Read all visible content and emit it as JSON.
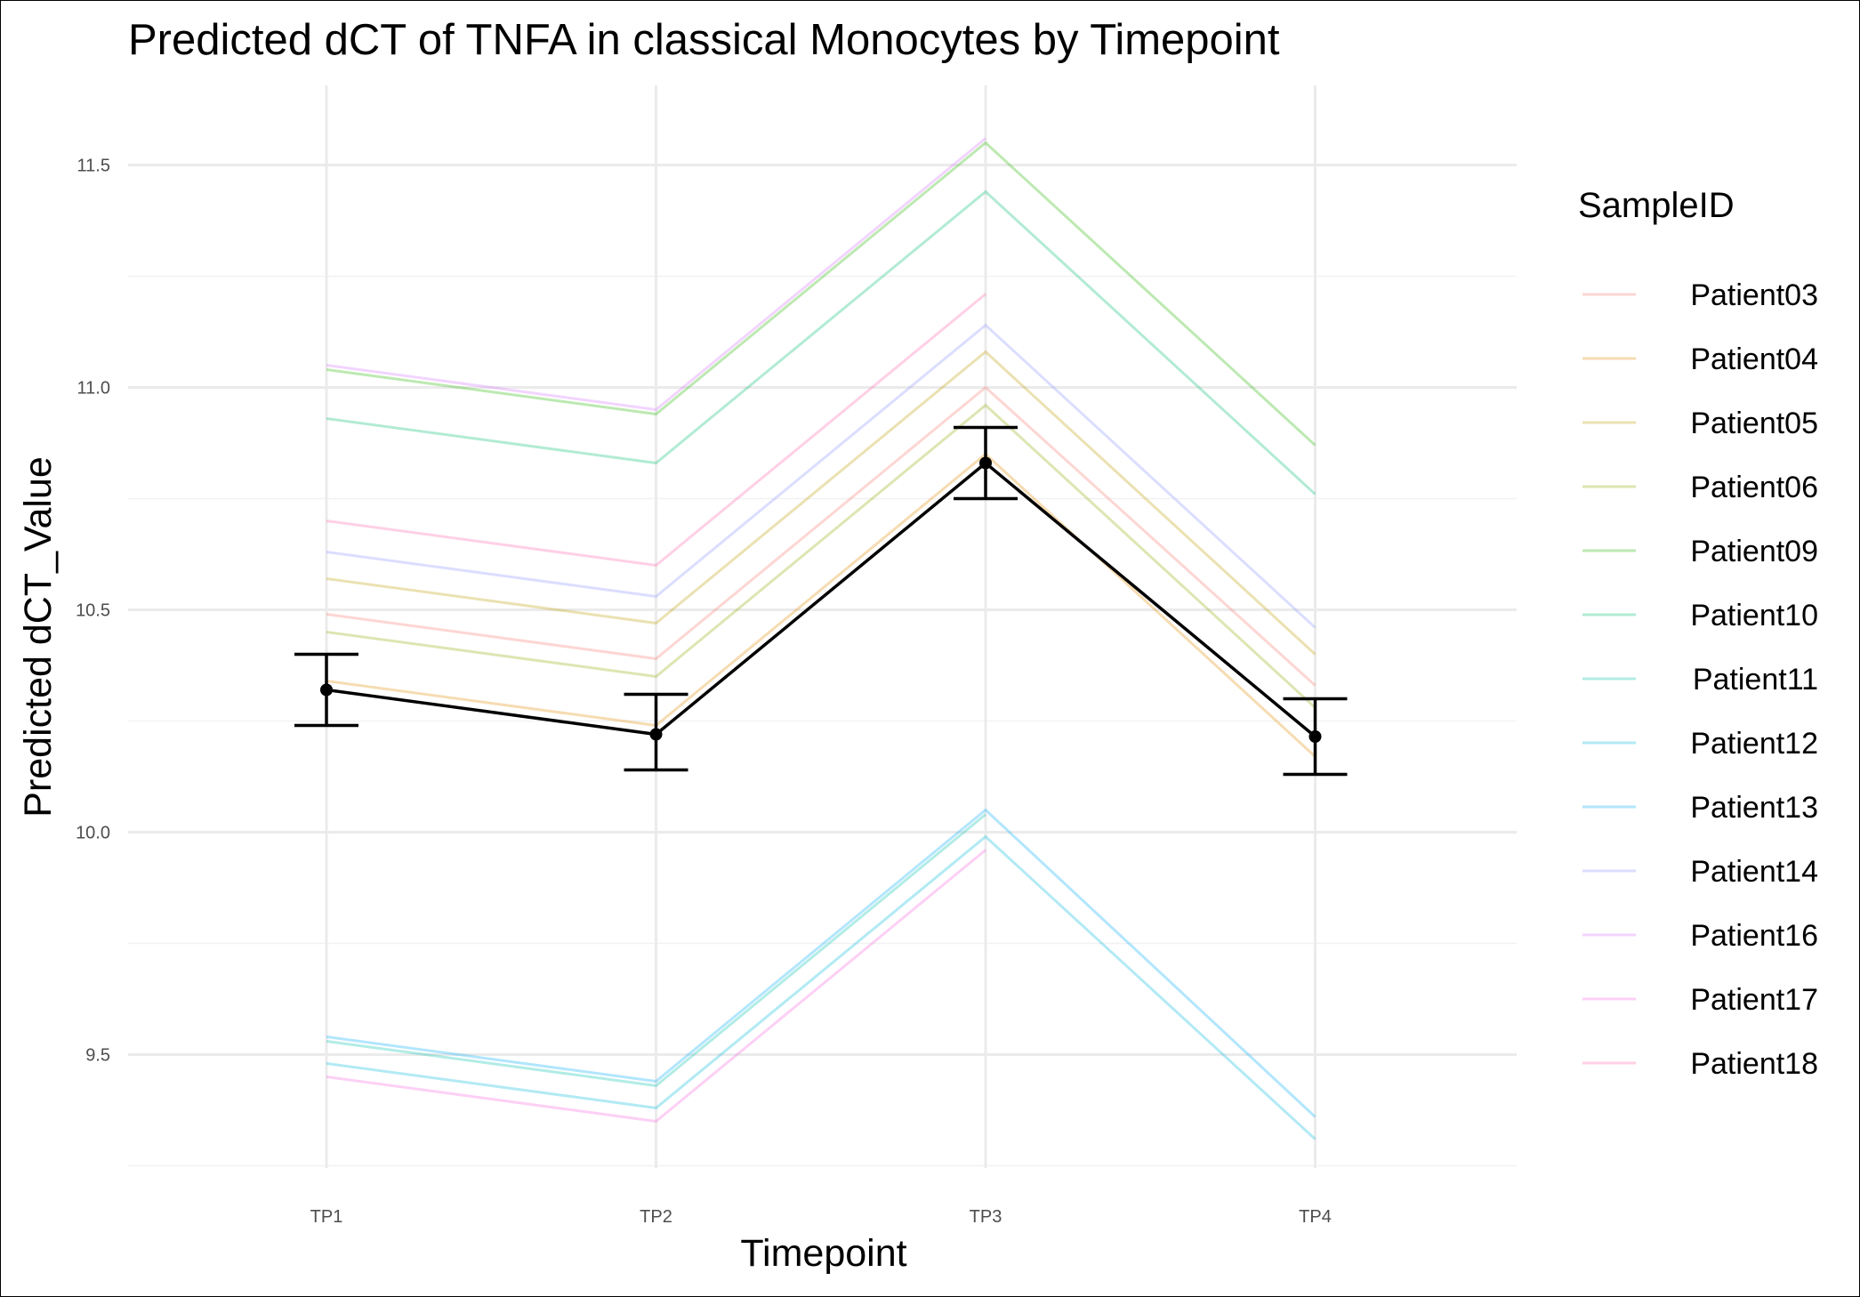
{
  "chart_data": {
    "type": "line",
    "title": "Predicted dCT of  TNFA in  classical  Monocytes by Timepoint",
    "xlabel": "Timepoint",
    "ylabel": "Predicted dCT_Value",
    "categories": [
      "TP1",
      "TP2",
      "TP3",
      "TP4"
    ],
    "yticks": [
      9.5,
      10.0,
      10.5,
      11.0,
      11.5
    ],
    "ylim": [
      9.25,
      11.62
    ],
    "grid": true,
    "legend": {
      "title": "SampleID",
      "position": "right"
    },
    "series": [
      {
        "name": "Patient03",
        "color": "#F8766D",
        "values": [
          10.49,
          10.39,
          11.0,
          10.33
        ]
      },
      {
        "name": "Patient04",
        "color": "#E18A00",
        "values": [
          10.34,
          10.24,
          10.85,
          10.17
        ]
      },
      {
        "name": "Patient05",
        "color": "#BE9C00",
        "values": [
          10.57,
          10.47,
          11.08,
          10.4
        ]
      },
      {
        "name": "Patient06",
        "color": "#8CAB00",
        "values": [
          10.45,
          10.35,
          10.96,
          10.28
        ]
      },
      {
        "name": "Patient09",
        "color": "#24B700",
        "values": [
          11.04,
          10.94,
          11.55,
          10.87
        ]
      },
      {
        "name": "Patient10",
        "color": "#00BE70",
        "values": [
          10.93,
          10.83,
          11.44,
          10.76
        ]
      },
      {
        "name": "Patient11",
        "color": "#00C1AB",
        "values": [
          9.53,
          9.43,
          10.04,
          null
        ]
      },
      {
        "name": "Patient12",
        "color": "#00BBDA",
        "values": [
          9.48,
          9.38,
          9.99,
          9.31
        ]
      },
      {
        "name": "Patient13",
        "color": "#00ACFC",
        "values": [
          9.54,
          9.44,
          10.05,
          9.36
        ]
      },
      {
        "name": "Patient14",
        "color": "#8B93FF",
        "values": [
          10.63,
          10.53,
          11.14,
          10.46
        ]
      },
      {
        "name": "Patient16",
        "color": "#D575FE",
        "values": [
          11.05,
          10.95,
          11.56,
          null
        ]
      },
      {
        "name": "Patient17",
        "color": "#F962DD",
        "values": [
          9.45,
          9.35,
          9.96,
          null
        ]
      },
      {
        "name": "Patient18",
        "color": "#FF65AC",
        "values": [
          10.7,
          10.6,
          11.21,
          null
        ]
      }
    ],
    "mean": {
      "color": "#000000",
      "values": [
        10.32,
        10.22,
        10.83,
        10.215
      ],
      "ci_lower": [
        10.24,
        10.14,
        10.75,
        10.13
      ],
      "ci_upper": [
        10.4,
        10.31,
        10.91,
        10.3
      ]
    }
  }
}
